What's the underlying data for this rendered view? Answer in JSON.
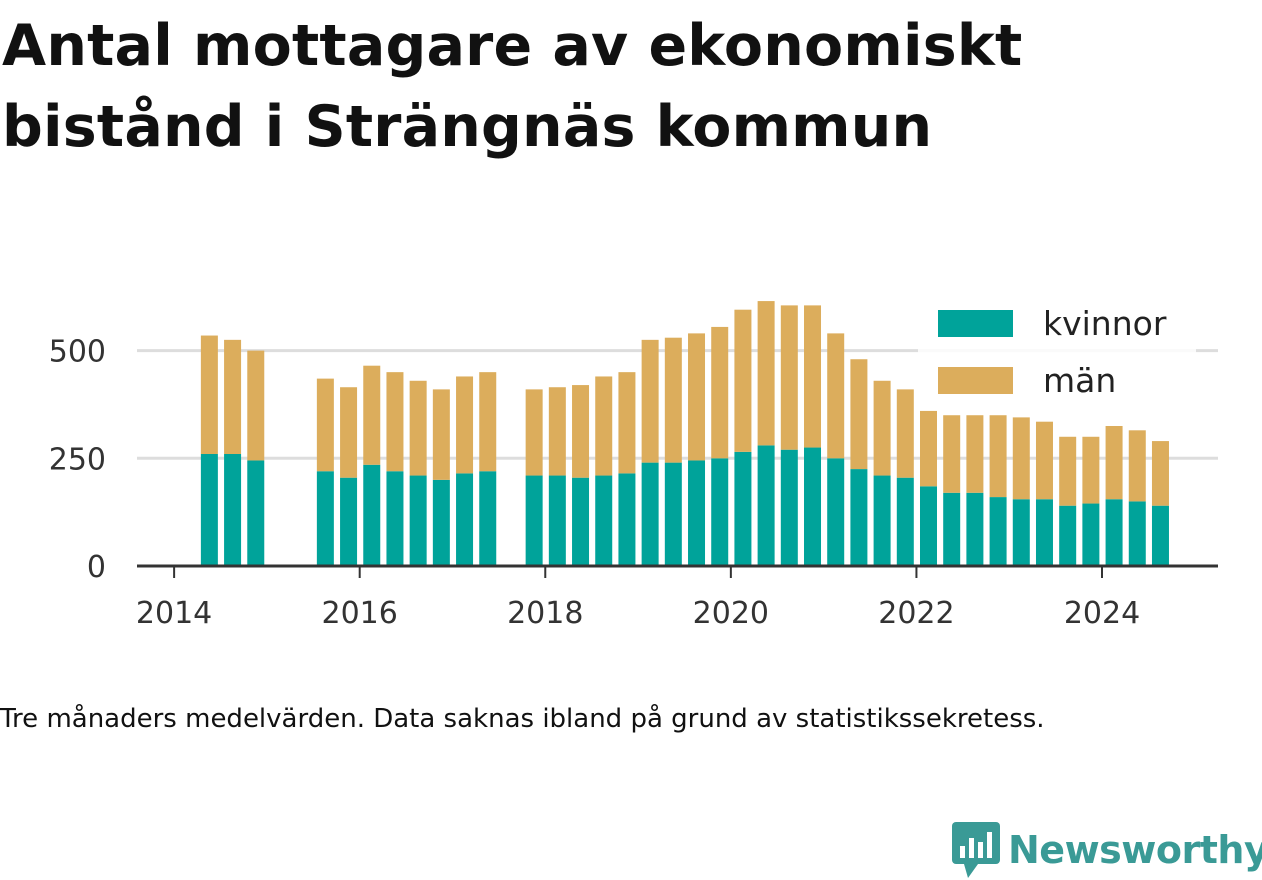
{
  "title": "Antal mottagare av ekonomiskt bistånd i Strängnäs kommun",
  "footnote": "Tre månaders medelvärden. Data saknas ibland på grund av statistikssekretess.",
  "brand": {
    "name": "Newsworthy",
    "icon": "newsworthy-chart-bubble-icon",
    "color": "#3a9a96"
  },
  "colors": {
    "kvinnor": "#00a39a",
    "man": "#dcad5c",
    "grid": "#dddddd",
    "axis": "#333333"
  },
  "chart_data": {
    "type": "bar",
    "stacked": true,
    "title": "Antal mottagare av ekonomiskt bistånd i Strängnäs kommun",
    "xlabel": "",
    "ylabel": "",
    "xlim": [
      2013.6,
      2025.25
    ],
    "ylim": [
      0,
      650
    ],
    "yticks": [
      0,
      250,
      500
    ],
    "xticks": [
      2014,
      2016,
      2018,
      2020,
      2022,
      2024
    ],
    "grid": "horizontal",
    "legend_position": "top-right",
    "legend": [
      "kvinnor",
      "män"
    ],
    "x": [
      2014.38,
      2014.63,
      2014.88,
      2015.63,
      2015.88,
      2016.13,
      2016.38,
      2016.63,
      2016.88,
      2017.13,
      2017.38,
      2017.88,
      2018.13,
      2018.38,
      2018.63,
      2018.88,
      2019.13,
      2019.38,
      2019.63,
      2019.88,
      2020.13,
      2020.38,
      2020.63,
      2020.88,
      2021.13,
      2021.38,
      2021.63,
      2021.88,
      2022.13,
      2022.38,
      2022.63,
      2022.88,
      2023.13,
      2023.38,
      2023.63,
      2023.88,
      2024.13,
      2024.38,
      2024.63
    ],
    "series": [
      {
        "name": "kvinnor",
        "values": [
          260,
          260,
          245,
          220,
          205,
          235,
          220,
          210,
          200,
          215,
          220,
          210,
          210,
          205,
          210,
          215,
          240,
          240,
          245,
          250,
          265,
          280,
          270,
          275,
          250,
          225,
          210,
          205,
          185,
          170,
          170,
          160,
          155,
          155,
          140,
          145,
          155,
          150,
          140
        ]
      },
      {
        "name": "män",
        "values": [
          275,
          265,
          255,
          215,
          210,
          230,
          230,
          220,
          210,
          225,
          230,
          200,
          205,
          215,
          230,
          235,
          285,
          290,
          295,
          305,
          330,
          335,
          335,
          330,
          290,
          255,
          220,
          205,
          175,
          180,
          180,
          190,
          190,
          180,
          160,
          155,
          170,
          165,
          150
        ]
      }
    ]
  }
}
